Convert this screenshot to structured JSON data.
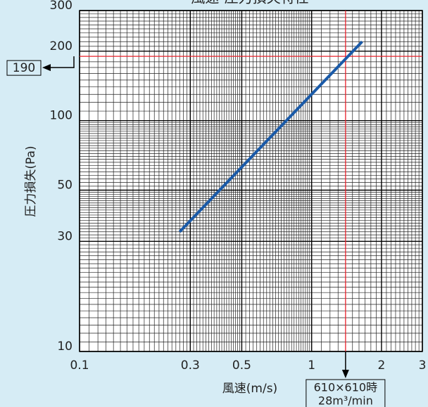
{
  "chart_data": {
    "type": "line",
    "title": "風速-圧力損失特性",
    "xlabel": "風速(m/s)",
    "ylabel": "圧力損失(Pa)",
    "xscale": "log",
    "yscale": "log",
    "xlim": [
      0.1,
      3
    ],
    "ylim": [
      10,
      300
    ],
    "xticks": [
      0.1,
      0.3,
      0.5,
      1,
      2,
      3
    ],
    "yticks": [
      10,
      30,
      50,
      100,
      200,
      300
    ],
    "grid": true,
    "series": [
      {
        "name": "風速-圧力損失",
        "color": "#1a5aa8",
        "x": [
          0.27,
          1.65
        ],
        "values": [
          33,
          220
        ]
      }
    ],
    "reference": {
      "x": 1.4,
      "y": 190,
      "y_label": "190",
      "x_label": [
        "610×610時",
        "28m³/min"
      ],
      "color": "#e8202a"
    }
  }
}
